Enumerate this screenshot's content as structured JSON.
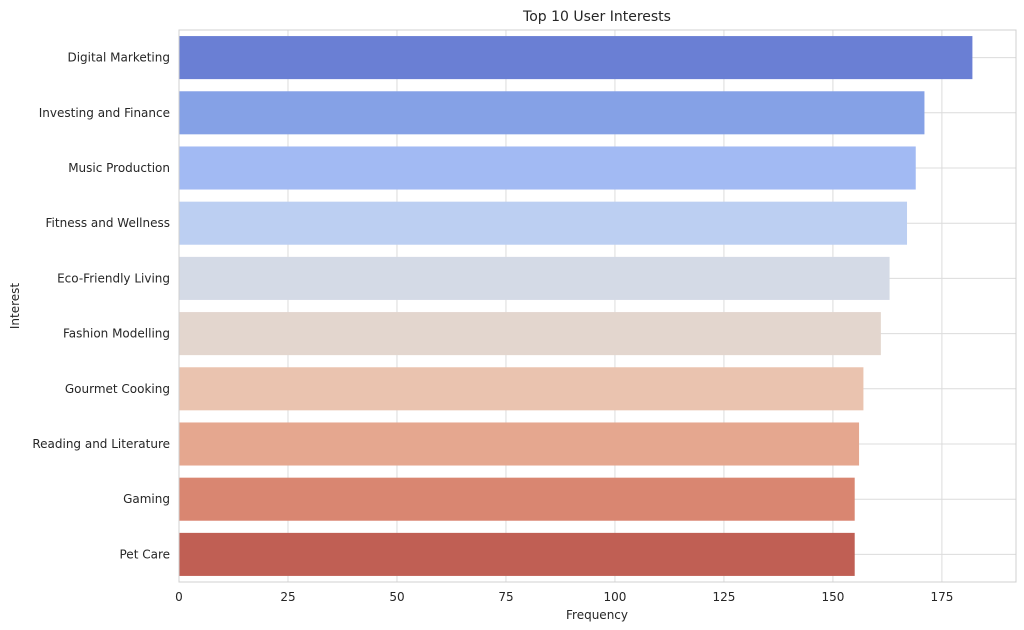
{
  "chart_data": {
    "type": "bar",
    "orientation": "horizontal",
    "title": "Top 10 User Interests",
    "xlabel": "Frequency",
    "ylabel": "Interest",
    "categories": [
      "Digital Marketing",
      "Investing and Finance",
      "Music Production",
      "Fitness and Wellness",
      "Eco-Friendly Living",
      "Fashion Modelling",
      "Gourmet Cooking",
      "Reading and Literature",
      "Gaming",
      "Pet Care"
    ],
    "values": [
      182,
      171,
      169,
      167,
      163,
      161,
      157,
      156,
      155,
      155
    ],
    "xlim": [
      0,
      192
    ],
    "xticks": [
      0,
      25,
      50,
      75,
      100,
      125,
      150,
      175
    ],
    "grid": true,
    "colors": [
      "#6a7fd4",
      "#85a1e6",
      "#a2baf3",
      "#bccff2",
      "#d4dae6",
      "#e3d6ce",
      "#eac3af",
      "#e5a78f",
      "#d98671",
      "#c05f54"
    ]
  }
}
